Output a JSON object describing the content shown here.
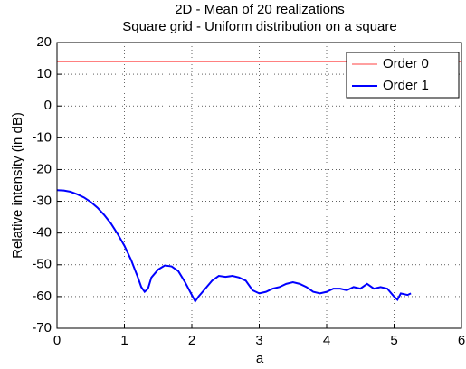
{
  "chart_data": {
    "type": "line",
    "title": "2D - Mean of 20 realizations",
    "subtitle": "Square grid - Uniform distribution on a square",
    "x_label": "a",
    "y_label": "Relative intensity (in dB)",
    "xlim": [
      0,
      6
    ],
    "xticks": [
      0,
      1,
      2,
      3,
      4,
      5,
      6
    ],
    "ylim": [
      -70,
      20
    ],
    "yticks": [
      -70,
      -60,
      -50,
      -40,
      -30,
      -20,
      -10,
      0,
      10,
      20
    ],
    "grid": true,
    "legend": "top-right",
    "series": [
      {
        "name": "Order 0",
        "color": "#ff0000",
        "x": [
          0,
          6
        ],
        "values": [
          14,
          14
        ]
      },
      {
        "name": "Order 1",
        "color": "#0000ff",
        "x": [
          0,
          0.1,
          0.2,
          0.3,
          0.4,
          0.5,
          0.6,
          0.7,
          0.8,
          0.9,
          1.0,
          1.1,
          1.2,
          1.25,
          1.3,
          1.35,
          1.4,
          1.5,
          1.6,
          1.7,
          1.8,
          1.9,
          2.0,
          2.05,
          2.1,
          2.2,
          2.3,
          2.4,
          2.5,
          2.6,
          2.7,
          2.8,
          2.9,
          3.0,
          3.1,
          3.2,
          3.3,
          3.4,
          3.5,
          3.6,
          3.7,
          3.8,
          3.9,
          4.0,
          4.1,
          4.2,
          4.3,
          4.4,
          4.5,
          4.6,
          4.7,
          4.8,
          4.9,
          5.0,
          5.05,
          5.1,
          5.2,
          5.25
        ],
        "values": [
          -26.5,
          -26.6,
          -27,
          -27.8,
          -28.8,
          -30.2,
          -32,
          -34.3,
          -37,
          -40.3,
          -44,
          -48.5,
          -54,
          -57,
          -58.5,
          -57.5,
          -54,
          -51.5,
          -50.2,
          -50.5,
          -52,
          -55.5,
          -59.5,
          -61.5,
          -60,
          -57.5,
          -55,
          -53.5,
          -53.8,
          -53.5,
          -54,
          -55,
          -58,
          -59,
          -58.5,
          -57.5,
          -57,
          -56,
          -55.5,
          -56,
          -57,
          -58.5,
          -59,
          -58.5,
          -57.5,
          -57.5,
          -58,
          -57,
          -57.5,
          -56,
          -57.5,
          -57,
          -57.5,
          -60,
          -61,
          -59,
          -59.5,
          -59
        ]
      }
    ]
  }
}
